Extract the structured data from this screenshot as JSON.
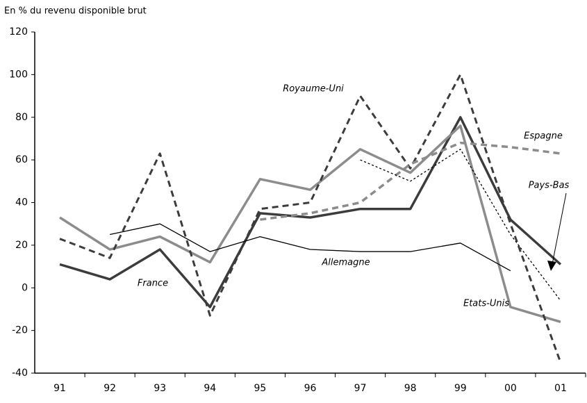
{
  "chart_data": {
    "type": "line",
    "title": "En % du revenu disponible brut",
    "categories": [
      "91",
      "92",
      "93",
      "94",
      "95",
      "96",
      "97",
      "98",
      "99",
      "00",
      "01"
    ],
    "series": [
      {
        "name": "France",
        "color": "#3c3c3c",
        "values": [
          11,
          4,
          18,
          -9,
          35,
          33,
          37,
          37,
          80,
          32,
          11
        ]
      },
      {
        "name": "Etats-Unis",
        "color": "#8c8c8c",
        "values": [
          33,
          18,
          24,
          12,
          51,
          46,
          65,
          54,
          76,
          -9,
          -16
        ]
      },
      {
        "name": "Royaume-Uni",
        "color": "#3c3c3c",
        "values": [
          23,
          14,
          63,
          -13,
          37,
          40,
          90,
          56,
          100,
          30,
          -35
        ]
      },
      {
        "name": "Espagne",
        "color": "#8c8c8c",
        "values": [
          null,
          null,
          null,
          null,
          32,
          35,
          40,
          58,
          68,
          66,
          63
        ]
      },
      {
        "name": "Pays-Bas",
        "color": "#000000",
        "values": [
          null,
          null,
          null,
          null,
          null,
          null,
          60,
          50,
          65,
          25,
          -6
        ]
      },
      {
        "name": "Allemagne",
        "color": "#000000",
        "values": [
          null,
          25,
          30,
          17,
          24,
          18,
          17,
          17,
          21,
          8,
          null
        ]
      }
    ],
    "ylim": [
      -40,
      120
    ],
    "yticks": [
      -40,
      -20,
      0,
      20,
      40,
      60,
      80,
      100,
      120
    ]
  }
}
